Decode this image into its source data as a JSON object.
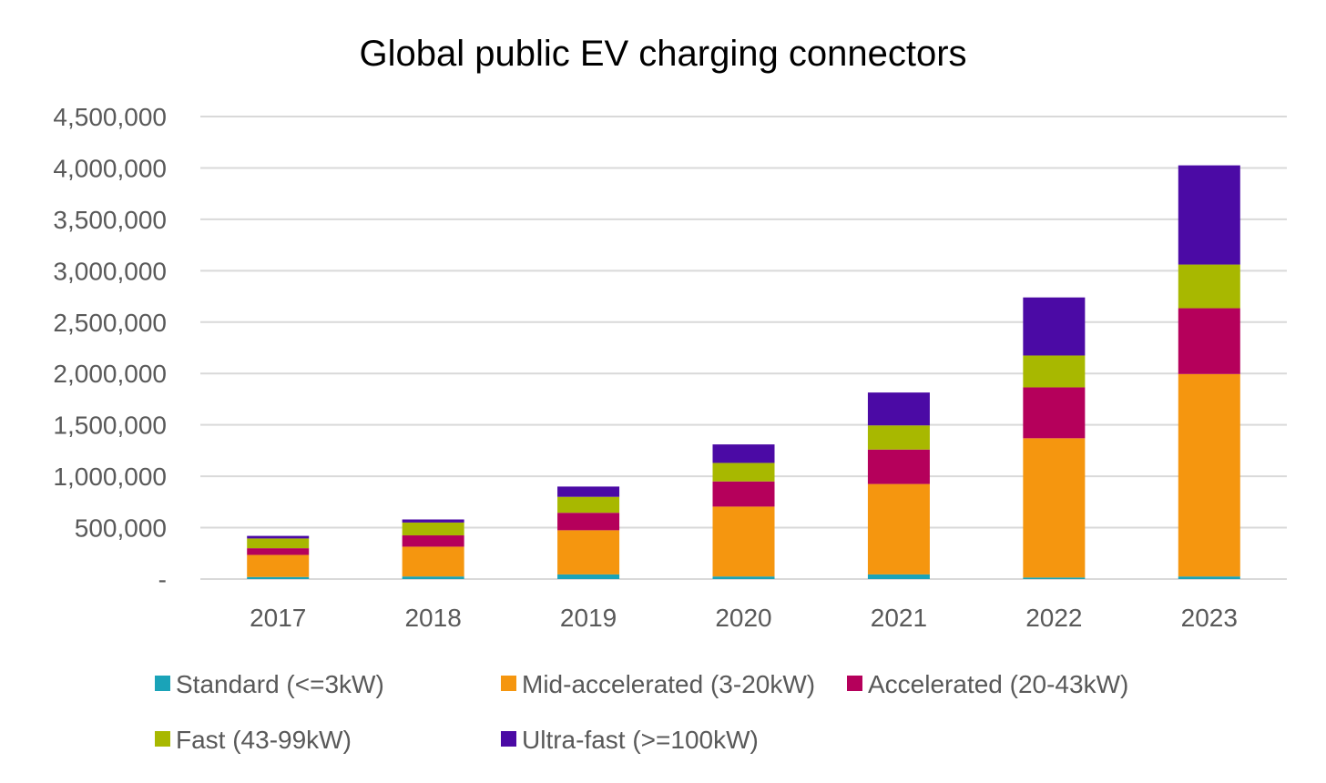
{
  "chart_data": {
    "type": "bar",
    "stacked": true,
    "title": "Global public EV charging connectors",
    "xlabel": "",
    "ylabel": "",
    "categories": [
      "2017",
      "2018",
      "2019",
      "2020",
      "2021",
      "2022",
      "2023"
    ],
    "ylim": [
      0,
      4500000
    ],
    "y_ticks": [
      0,
      500000,
      1000000,
      1500000,
      2000000,
      2500000,
      3000000,
      3500000,
      4000000,
      4500000
    ],
    "y_tick_labels": [
      "-",
      "500,000",
      "1,000,000",
      "1,500,000",
      "2,000,000",
      "2,500,000",
      "3,000,000",
      "3,500,000",
      "4,000,000",
      "4,500,000"
    ],
    "grid": true,
    "legend_position": "bottom",
    "series": [
      {
        "name": "Standard (<=3kW)",
        "color": "#1aa3b8",
        "values": [
          20000,
          25000,
          45000,
          25000,
          45000,
          15000,
          25000
        ]
      },
      {
        "name": "Mid-accelerated (3-20kW)",
        "color": "#f5960f",
        "values": [
          215000,
          290000,
          430000,
          680000,
          880000,
          1355000,
          1970000
        ]
      },
      {
        "name": "Accelerated (20-43kW)",
        "color": "#b5005b",
        "values": [
          65000,
          110000,
          170000,
          245000,
          335000,
          495000,
          640000
        ]
      },
      {
        "name": "Fast (43-99kW)",
        "color": "#a8b800",
        "values": [
          95000,
          125000,
          155000,
          180000,
          235000,
          310000,
          425000
        ]
      },
      {
        "name": "Ultra-fast (>=100kW)",
        "color": "#4b0aa5",
        "values": [
          25000,
          30000,
          100000,
          180000,
          320000,
          565000,
          965000
        ]
      }
    ]
  }
}
